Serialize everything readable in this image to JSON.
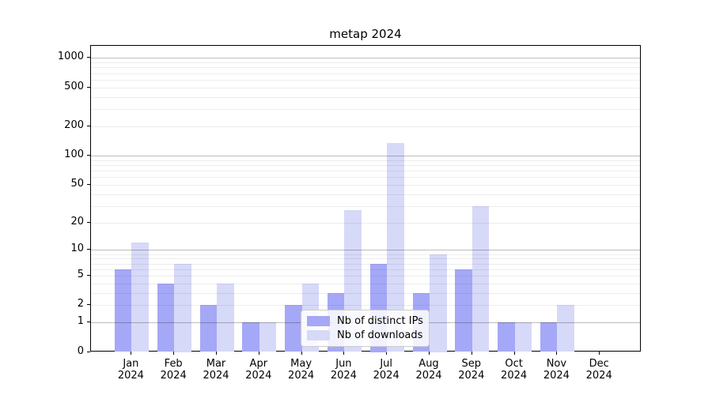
{
  "chart_data": {
    "type": "bar",
    "title": "metap 2024",
    "categories": [
      "Jan",
      "Feb",
      "Mar",
      "Apr",
      "May",
      "Jun",
      "Jul",
      "Aug",
      "Sep",
      "Oct",
      "Nov",
      "Dec"
    ],
    "year": "2024",
    "series": [
      {
        "name": "Nb of distinct IPs",
        "color": "#a5a8f6",
        "values": [
          6,
          4,
          2,
          1,
          2,
          3,
          7,
          3,
          6,
          1,
          1,
          0
        ]
      },
      {
        "name": "Nb of downloads",
        "color": "#d7d9f8",
        "values": [
          12,
          7,
          4,
          1,
          4,
          27,
          135,
          9,
          30,
          1,
          2,
          0
        ]
      }
    ],
    "xlabel": "",
    "ylabel": "",
    "y_scale": "log1p",
    "y_ticks": [
      0,
      1,
      2,
      5,
      10,
      20,
      50,
      100,
      200,
      500,
      1000
    ],
    "ylim": [
      0,
      1350
    ],
    "grid": "major and minor horizontal gridlines drawn over bars",
    "legend_position": "inside lower center"
  }
}
